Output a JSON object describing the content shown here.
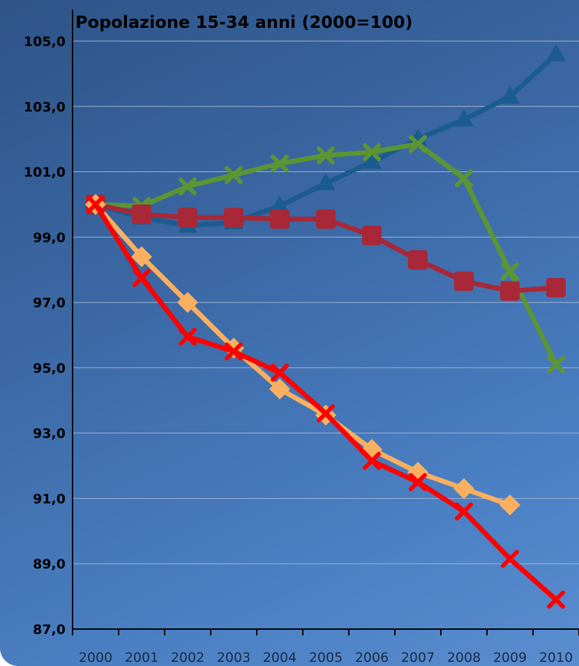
{
  "chart_data": {
    "type": "line",
    "title": "Popolazione 15-34 anni (2000=100)",
    "xlabel": "",
    "ylabel": "",
    "x": [
      "2000",
      "2001",
      "2002",
      "2003",
      "2004",
      "2005",
      "2006",
      "2007",
      "2008",
      "2009",
      "2010"
    ],
    "y_ticks": [
      "87,0",
      "89,0",
      "91,0",
      "93,0",
      "95,0",
      "97,0",
      "99,0",
      "101,0",
      "103,0",
      "105,0"
    ],
    "ylim": [
      87,
      105.5
    ],
    "grid": "horizontal",
    "legend": "none",
    "series": [
      {
        "color": "#1b5c8f",
        "marker": "triangle",
        "values": [
          100.0,
          99.6,
          99.35,
          99.45,
          99.95,
          100.65,
          101.3,
          102.0,
          102.6,
          103.3,
          104.6
        ]
      },
      {
        "color": "#5b9534",
        "marker": "x",
        "values": [
          100.0,
          99.95,
          100.55,
          100.9,
          101.25,
          101.5,
          101.6,
          101.85,
          100.8,
          97.95,
          95.1
        ]
      },
      {
        "color": "#a82838",
        "marker": "square",
        "values": [
          100.0,
          99.7,
          99.6,
          99.6,
          99.55,
          99.55,
          99.05,
          98.3,
          97.65,
          97.35,
          97.45
        ]
      },
      {
        "color": "#fbb060",
        "marker": "diamond",
        "values": [
          100.0,
          98.4,
          97.0,
          95.6,
          94.35,
          93.55,
          92.5,
          91.8,
          91.3,
          90.8,
          null
        ]
      },
      {
        "color": "#ff0000",
        "marker": "x",
        "values": [
          100.0,
          97.75,
          95.95,
          95.5,
          94.85,
          93.6,
          92.15,
          91.5,
          90.6,
          89.15,
          87.9
        ]
      }
    ]
  }
}
